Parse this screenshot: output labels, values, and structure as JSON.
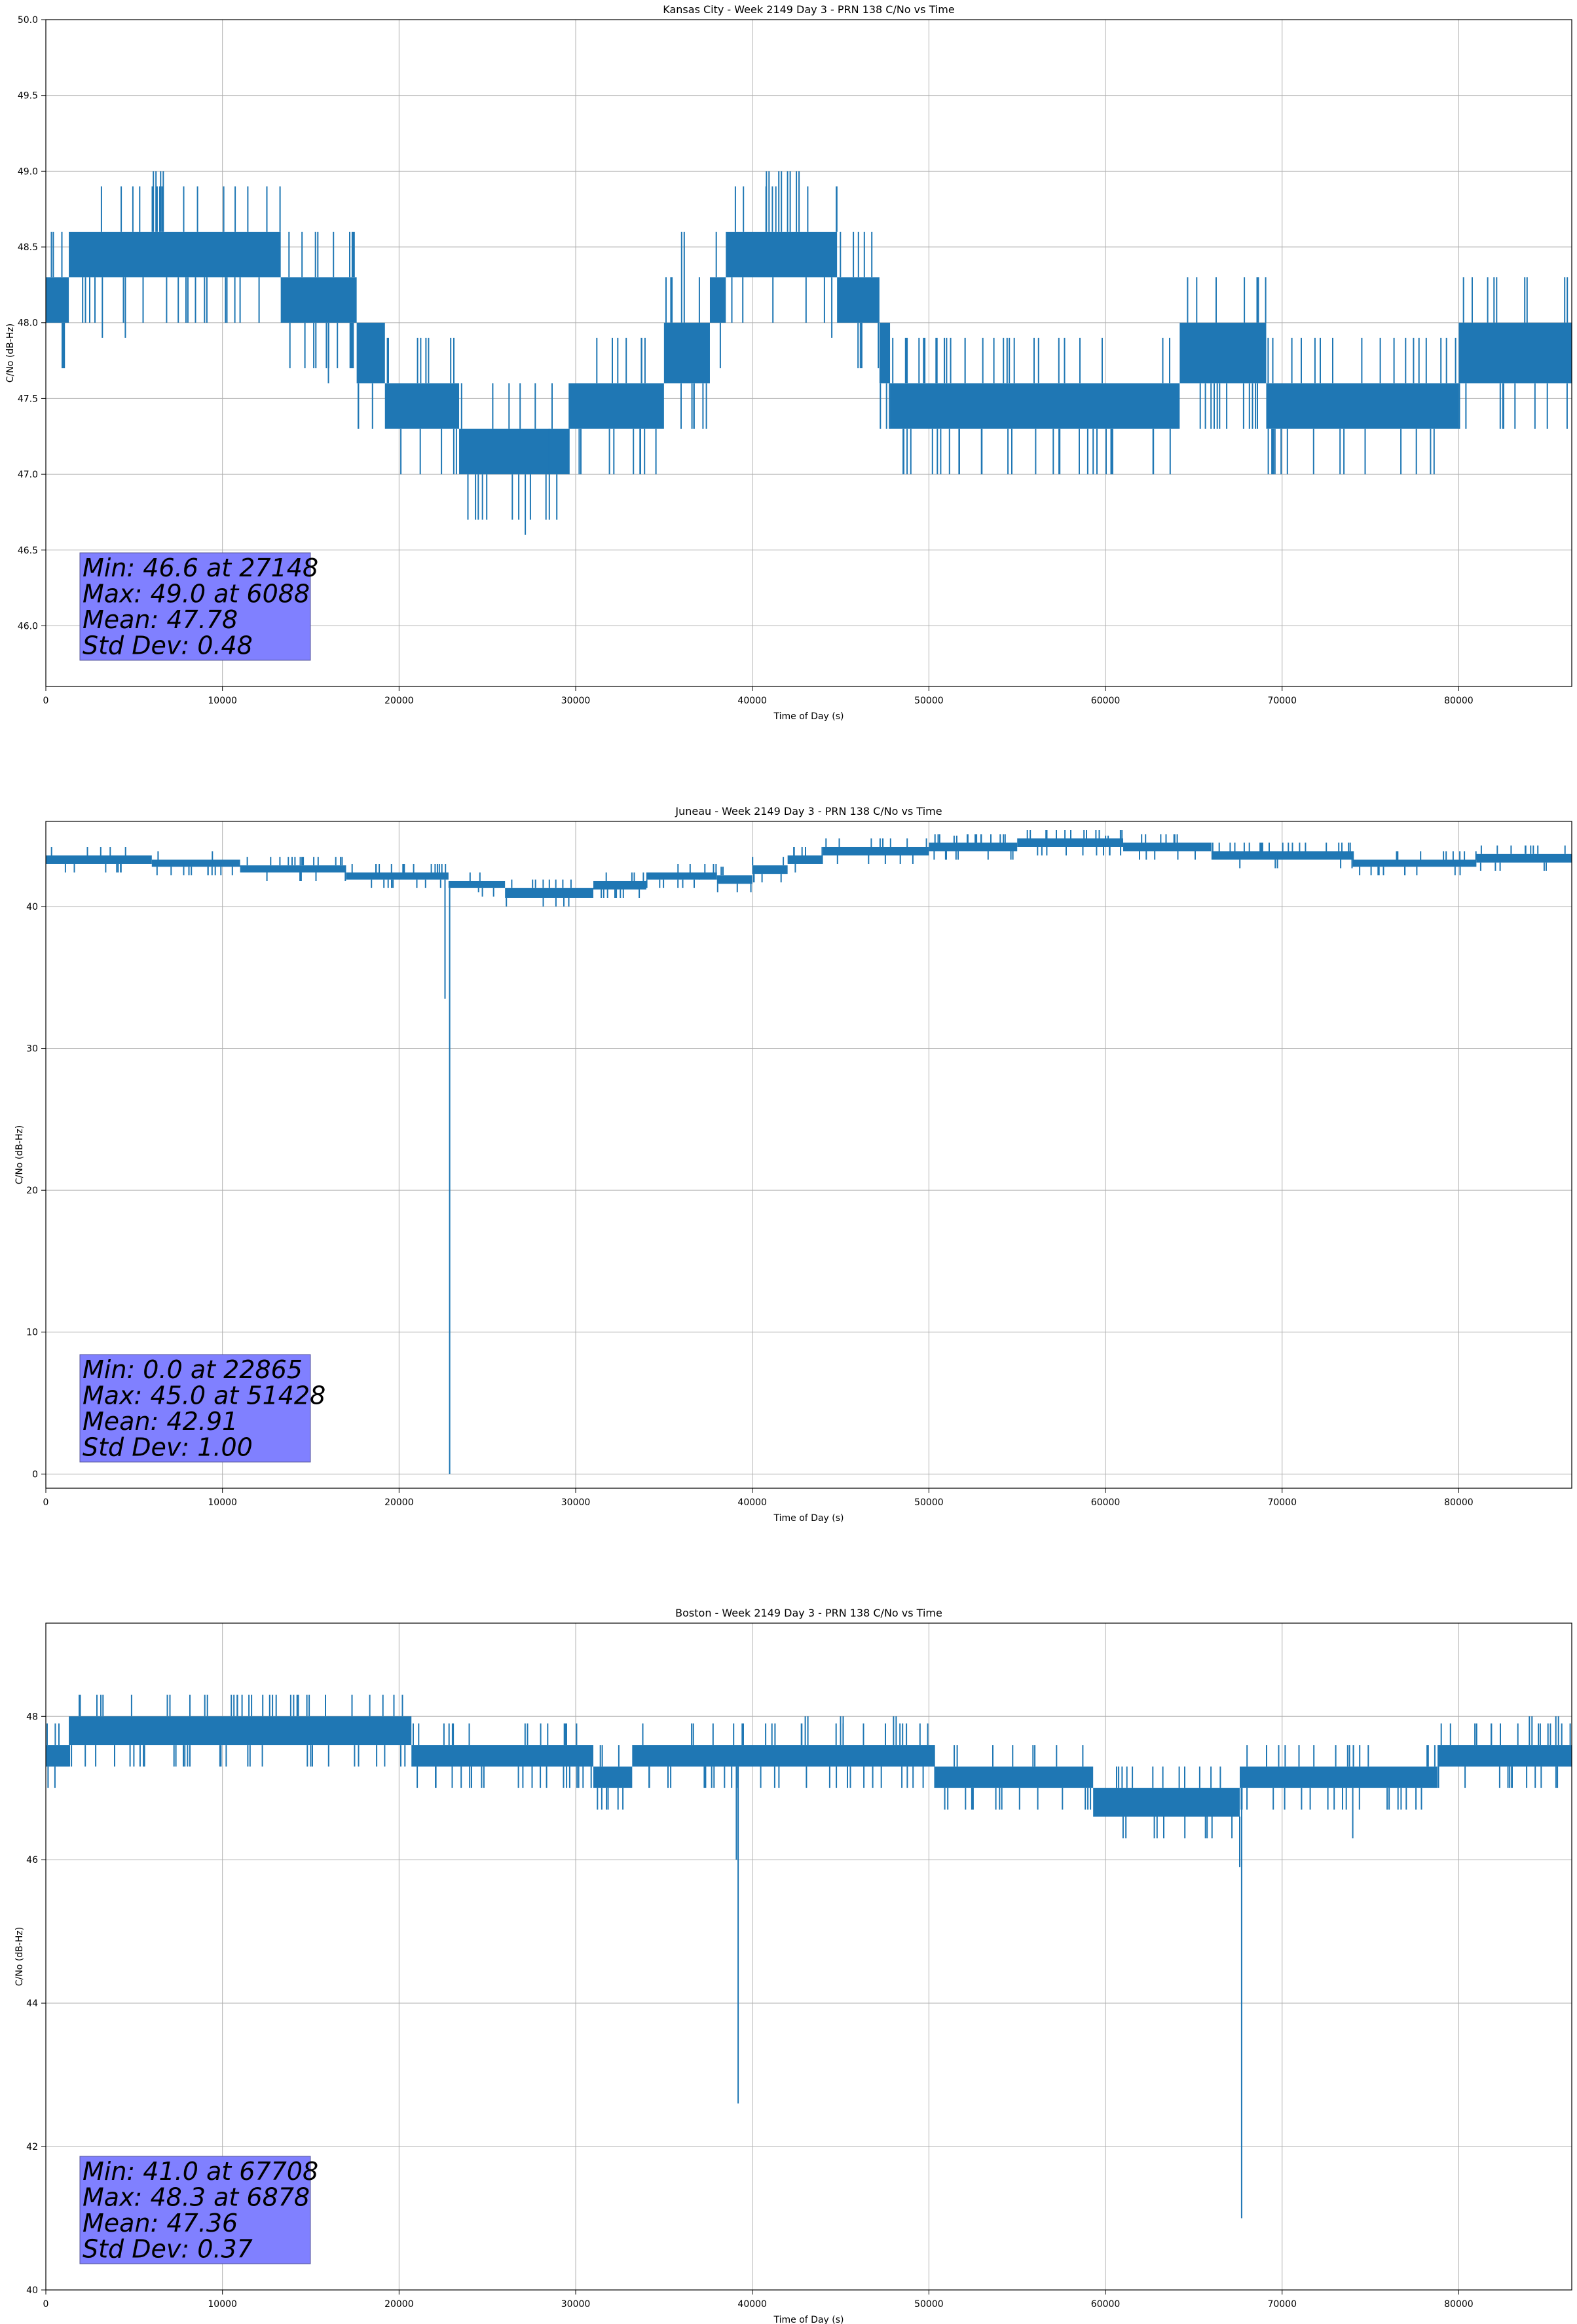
{
  "colors": {
    "line": "#1f77b4",
    "grid": "#b0b0b0",
    "stats_box": "#8080ff"
  },
  "chart_data": [
    {
      "type": "line",
      "title": "Kansas City - Week 2149 Day 3 - PRN 138 C/No vs Time",
      "xlabel": "Time of Day (s)",
      "ylabel": "C/No (dB-Hz)",
      "xlim": [
        0,
        86400
      ],
      "ylim": [
        45.6,
        50.0
      ],
      "grid": true,
      "xticks": [
        0,
        10000,
        20000,
        30000,
        40000,
        50000,
        60000,
        70000,
        80000
      ],
      "xtick_labels": [
        "0",
        "10000",
        "20000",
        "30000",
        "40000",
        "50000",
        "60000",
        "70000",
        "80000"
      ],
      "yticks": [
        46.0,
        46.5,
        47.0,
        47.5,
        48.0,
        48.5,
        49.0,
        49.5,
        50.0
      ],
      "ytick_labels": [
        "46.0",
        "46.5",
        "47.0",
        "47.5",
        "48.0",
        "48.5",
        "49.0",
        "49.5",
        "50.0"
      ],
      "stats": [
        "Min: 46.6 at 27148",
        "Max: 49.0 at 6088",
        "Mean: 47.78",
        "Std Dev: 0.48"
      ],
      "stats_position": "lower-left",
      "step": 0.3,
      "segments": [
        {
          "x0": 0,
          "x1": 1300,
          "lo": 48.0,
          "hi": 48.3
        },
        {
          "x0": 1300,
          "x1": 13300,
          "lo": 48.3,
          "hi": 48.6
        },
        {
          "x0": 13300,
          "x1": 17600,
          "lo": 48.0,
          "hi": 48.3
        },
        {
          "x0": 17600,
          "x1": 19200,
          "lo": 47.6,
          "hi": 48.0
        },
        {
          "x0": 19200,
          "x1": 23400,
          "lo": 47.3,
          "hi": 47.6
        },
        {
          "x0": 23400,
          "x1": 29600,
          "lo": 47.0,
          "hi": 47.3
        },
        {
          "x0": 29600,
          "x1": 35000,
          "lo": 47.3,
          "hi": 47.6
        },
        {
          "x0": 35000,
          "x1": 37600,
          "lo": 47.6,
          "hi": 48.0
        },
        {
          "x0": 37600,
          "x1": 38500,
          "lo": 48.0,
          "hi": 48.3
        },
        {
          "x0": 38500,
          "x1": 44800,
          "lo": 48.3,
          "hi": 48.6
        },
        {
          "x0": 44800,
          "x1": 47200,
          "lo": 48.0,
          "hi": 48.3
        },
        {
          "x0": 47200,
          "x1": 47800,
          "lo": 47.6,
          "hi": 48.0
        },
        {
          "x0": 47800,
          "x1": 64200,
          "lo": 47.3,
          "hi": 47.6
        },
        {
          "x0": 64200,
          "x1": 69100,
          "lo": 47.6,
          "hi": 48.0
        },
        {
          "x0": 69100,
          "x1": 80000,
          "lo": 47.3,
          "hi": 47.6
        },
        {
          "x0": 80000,
          "x1": 86400,
          "lo": 47.6,
          "hi": 48.0
        }
      ],
      "spikes": [
        [
          6088,
          49.0
        ],
        [
          6300,
          48.9
        ],
        [
          6500,
          49.0
        ],
        [
          27148,
          46.6
        ],
        [
          40800,
          49.0
        ],
        [
          41500,
          49.0
        ],
        [
          42000,
          49.0
        ],
        [
          42500,
          49.0
        ],
        [
          7700,
          48.6
        ],
        [
          3200,
          47.9
        ],
        [
          4500,
          47.9
        ],
        [
          21200,
          47.0
        ],
        [
          28500,
          47.0
        ],
        [
          22400,
          47.0
        ],
        [
          36000,
          48.6
        ],
        [
          44500,
          47.9
        ],
        [
          50200,
          47.0
        ],
        [
          53000,
          47.0
        ],
        [
          59300,
          47.0
        ],
        [
          68600,
          47.3
        ],
        [
          70300,
          47.0
        ],
        [
          73500,
          47.0
        ],
        [
          77600,
          47.0
        ],
        [
          82000,
          48.3
        ],
        [
          86000,
          48.3
        ],
        [
          11000,
          48.0
        ],
        [
          16000,
          47.6
        ]
      ]
    },
    {
      "type": "line",
      "title": "Juneau - Week 2149 Day 3 - PRN 138 C/No vs Time",
      "xlabel": "Time of Day (s)",
      "ylabel": "C/No (dB-Hz)",
      "xlim": [
        0,
        86400
      ],
      "ylim": [
        -1.0,
        46.0
      ],
      "grid": true,
      "xticks": [
        0,
        10000,
        20000,
        30000,
        40000,
        50000,
        60000,
        70000,
        80000
      ],
      "xtick_labels": [
        "0",
        "10000",
        "20000",
        "30000",
        "40000",
        "50000",
        "60000",
        "70000",
        "80000"
      ],
      "yticks": [
        0,
        10,
        20,
        30,
        40
      ],
      "ytick_labels": [
        "0",
        "10",
        "20",
        "30",
        "40"
      ],
      "stats": [
        "Min: 0.0 at 22865",
        "Max: 45.0 at 51428",
        "Mean: 42.91",
        "Std Dev: 1.00"
      ],
      "stats_position": "lower-left",
      "step": 0.6,
      "segments": [
        {
          "x0": 0,
          "x1": 6000,
          "lo": 43.0,
          "hi": 43.6
        },
        {
          "x0": 6000,
          "x1": 11000,
          "lo": 42.8,
          "hi": 43.3
        },
        {
          "x0": 11000,
          "x1": 17000,
          "lo": 42.4,
          "hi": 42.9
        },
        {
          "x0": 17000,
          "x1": 22800,
          "lo": 41.9,
          "hi": 42.4
        },
        {
          "x0": 22800,
          "x1": 26000,
          "lo": 41.3,
          "hi": 41.8
        },
        {
          "x0": 26000,
          "x1": 31000,
          "lo": 40.6,
          "hi": 41.3
        },
        {
          "x0": 31000,
          "x1": 34000,
          "lo": 41.2,
          "hi": 41.8
        },
        {
          "x0": 34000,
          "x1": 38000,
          "lo": 41.9,
          "hi": 42.4
        },
        {
          "x0": 38000,
          "x1": 40000,
          "lo": 41.6,
          "hi": 42.2
        },
        {
          "x0": 40000,
          "x1": 42000,
          "lo": 42.3,
          "hi": 42.9
        },
        {
          "x0": 42000,
          "x1": 44000,
          "lo": 43.0,
          "hi": 43.6
        },
        {
          "x0": 44000,
          "x1": 50000,
          "lo": 43.6,
          "hi": 44.2
        },
        {
          "x0": 50000,
          "x1": 55000,
          "lo": 43.9,
          "hi": 44.5
        },
        {
          "x0": 55000,
          "x1": 61000,
          "lo": 44.2,
          "hi": 44.8
        },
        {
          "x0": 61000,
          "x1": 66000,
          "lo": 43.9,
          "hi": 44.5
        },
        {
          "x0": 66000,
          "x1": 74000,
          "lo": 43.3,
          "hi": 43.9
        },
        {
          "x0": 74000,
          "x1": 81000,
          "lo": 42.8,
          "hi": 43.3
        },
        {
          "x0": 81000,
          "x1": 86400,
          "lo": 43.1,
          "hi": 43.7
        }
      ],
      "spikes": [
        [
          22865,
          0.0
        ],
        [
          22600,
          33.5
        ],
        [
          51428,
          45.0
        ],
        [
          60000,
          45.0
        ],
        [
          24500,
          41.0
        ],
        [
          37000,
          41.9
        ]
      ]
    },
    {
      "type": "line",
      "title": "Boston - Week 2149 Day 3 - PRN 138 C/No vs Time",
      "xlabel": "Time of Day (s)",
      "ylabel": "C/No (dB-Hz)",
      "xlim": [
        0,
        86400
      ],
      "ylim": [
        40.0,
        49.3
      ],
      "grid": true,
      "xticks": [
        0,
        10000,
        20000,
        30000,
        40000,
        50000,
        60000,
        70000,
        80000
      ],
      "xtick_labels": [
        "0",
        "10000",
        "20000",
        "30000",
        "40000",
        "50000",
        "60000",
        "70000",
        "80000"
      ],
      "yticks": [
        40,
        42,
        44,
        46,
        48
      ],
      "ytick_labels": [
        "40",
        "42",
        "44",
        "46",
        "48"
      ],
      "stats": [
        "Min: 41.0 at 67708",
        "Max: 48.3 at 6878",
        "Mean: 47.36",
        "Std Dev: 0.37"
      ],
      "stats_position": "lower-left",
      "step": 0.3,
      "segments": [
        {
          "x0": 0,
          "x1": 1300,
          "lo": 47.3,
          "hi": 47.6
        },
        {
          "x0": 1300,
          "x1": 20700,
          "lo": 47.6,
          "hi": 48.0
        },
        {
          "x0": 20700,
          "x1": 31000,
          "lo": 47.3,
          "hi": 47.6
        },
        {
          "x0": 31000,
          "x1": 33200,
          "lo": 47.0,
          "hi": 47.3
        },
        {
          "x0": 33200,
          "x1": 50300,
          "lo": 47.3,
          "hi": 47.6
        },
        {
          "x0": 50300,
          "x1": 59300,
          "lo": 47.0,
          "hi": 47.3
        },
        {
          "x0": 59300,
          "x1": 67600,
          "lo": 46.6,
          "hi": 47.0
        },
        {
          "x0": 67600,
          "x1": 78800,
          "lo": 47.0,
          "hi": 47.3
        },
        {
          "x0": 78800,
          "x1": 86400,
          "lo": 47.3,
          "hi": 47.6
        }
      ],
      "spikes": [
        [
          6878,
          48.3
        ],
        [
          9000,
          48.3
        ],
        [
          10500,
          48.3
        ],
        [
          11500,
          48.3
        ],
        [
          39200,
          42.6
        ],
        [
          39100,
          46.0
        ],
        [
          67708,
          41.0
        ],
        [
          67600,
          45.9
        ],
        [
          43000,
          48.0
        ],
        [
          45000,
          48.0
        ],
        [
          48000,
          48.0
        ],
        [
          63300,
          46.3
        ],
        [
          74000,
          46.3
        ],
        [
          15000,
          47.3
        ],
        [
          20100,
          47.3
        ],
        [
          24000,
          47.0
        ],
        [
          28000,
          47.0
        ],
        [
          84000,
          48.0
        ],
        [
          85500,
          48.0
        ]
      ]
    }
  ]
}
